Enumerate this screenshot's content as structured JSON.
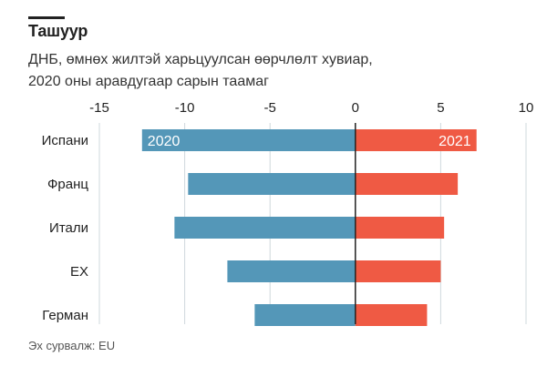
{
  "header": {
    "title": "Ташуур",
    "subtitle_line1": "ДНБ, өмнөх жилтэй харьцуулсан өөрчлөлт хувиар,",
    "subtitle_line2": "2020 оны аравдугаар сарын таамаг"
  },
  "source": "Эх сурвалж: EU",
  "colors": {
    "series_2020": "#5497b8",
    "series_2021": "#ef5a44",
    "grid": "#cfd8dc",
    "zero_line": "#222222",
    "text": "#222222"
  },
  "chart_data": {
    "type": "bar",
    "orientation": "horizontal",
    "categories": [
      "Испани",
      "Франц",
      "Итали",
      "ЕХ",
      "Герман"
    ],
    "series": [
      {
        "name": "2020",
        "values": [
          -12.5,
          -9.8,
          -10.6,
          -7.5,
          -5.9
        ]
      },
      {
        "name": "2021",
        "values": [
          7.1,
          6.0,
          5.2,
          5.0,
          4.2
        ]
      }
    ],
    "xlim": [
      -15,
      10
    ],
    "xticks": [
      -15,
      -10,
      -5,
      0,
      5,
      10
    ],
    "grid": true,
    "legend": "in-bar labels on first row"
  }
}
